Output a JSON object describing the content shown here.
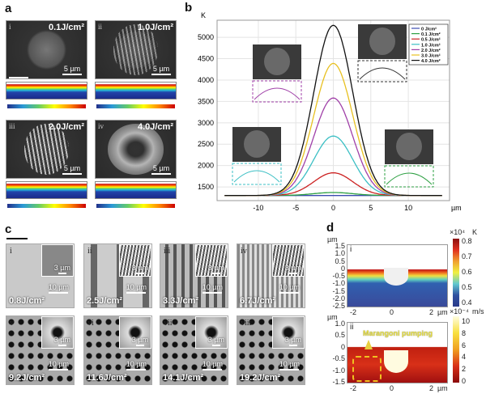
{
  "panel_a": {
    "label": "a",
    "subpanels": [
      {
        "num": "i",
        "fluence": "0.1J/cm²",
        "scale": "5 µm"
      },
      {
        "num": "ii",
        "fluence": "1.0J/cm²",
        "scale": "5 µm"
      },
      {
        "num": "iii",
        "fluence": "2.0J/cm²",
        "scale": "5 µm"
      },
      {
        "num": "iv",
        "fluence": "4.0J/cm²",
        "scale": "5 µm"
      }
    ]
  },
  "panel_b": {
    "label": "b"
  },
  "chart_data": {
    "type": "line",
    "ylabel": "K",
    "xlabel": "µm",
    "xlim": [
      -15.5,
      15.5
    ],
    "ylim": [
      1180,
      5400
    ],
    "xticks": [
      -10,
      -5,
      0,
      5,
      10
    ],
    "yticks": [
      1500,
      2000,
      2500,
      3000,
      3500,
      4000,
      4500,
      5000
    ],
    "grid": true,
    "legend_position": "top-right",
    "series": [
      {
        "name": "0 J/cm²",
        "color": "#3b4bb0",
        "peak": 1300
      },
      {
        "name": "0.1 J/cm²",
        "color": "#2ea043",
        "peak": 1370
      },
      {
        "name": "0.5 J/cm²",
        "color": "#cc2222",
        "peak": 1830
      },
      {
        "name": "1.0 J/cm²",
        "color": "#3bbfc4",
        "peak": 2690
      },
      {
        "name": "2.0 J/cm²",
        "color": "#a040a8",
        "peak": 3580
      },
      {
        "name": "3.0 J/cm²",
        "color": "#e8c020",
        "peak": 4390
      },
      {
        "name": "4.0 J/cm²",
        "color": "#111111",
        "peak": 5280
      }
    ],
    "baseline": 1300
  },
  "panel_c": {
    "label": "c",
    "subpanels": [
      {
        "num": "i",
        "fluence": "0.8J/cm²",
        "scale": "10 µm",
        "inset_scale": "3 µm"
      },
      {
        "num": "ii",
        "fluence": "2.5J/cm²",
        "scale": "10 µm",
        "inset_scale": "3 µm"
      },
      {
        "num": "iii",
        "fluence": "3.3J/cm²",
        "scale": "10 µm",
        "inset_scale": "3 µm"
      },
      {
        "num": "iv",
        "fluence": "6.7J/cm²",
        "scale": "10 µm",
        "inset_scale": "3 µm"
      },
      {
        "num": "v",
        "fluence": "9.2J/cm²",
        "scale": "10 µm",
        "inset_scale": "3 µm"
      },
      {
        "num": "vi",
        "fluence": "11.6J/cm²",
        "scale": "10 µm",
        "inset_scale": "3 µm"
      },
      {
        "num": "vii",
        "fluence": "14.1J/cm²",
        "scale": "10 µm",
        "inset_scale": "3 µm"
      },
      {
        "num": "viii",
        "fluence": "19.2J/cm²",
        "scale": "10 µm",
        "inset_scale": "3 µm"
      }
    ]
  },
  "panel_d": {
    "label": "d",
    "i": {
      "num": "i",
      "yunit": "µm",
      "yticks": [
        "1.5",
        "1.0",
        "0.5",
        "0",
        "-0.5",
        "-1.0",
        "-1.5",
        "-2.0",
        "-2.5"
      ],
      "xticks": [
        "-2",
        "0",
        "2"
      ],
      "xunit": "µm",
      "cbar_exp": "×10⁴",
      "cbar_unit": "K",
      "cbar_ticks": [
        "0.8",
        "0.7",
        "0.6",
        "0.5",
        "0.4"
      ]
    },
    "ii": {
      "num": "ii",
      "yunit": "µm",
      "yticks": [
        "1.0",
        "0.5",
        "0",
        "-0.5",
        "-1.0",
        "-1.5"
      ],
      "xticks": [
        "-2",
        "0",
        "2"
      ],
      "xunit": "µm",
      "cbar_exp": "×10⁻⁴",
      "cbar_unit": "m/s",
      "cbar_ticks": [
        "10",
        "8",
        "6",
        "4",
        "2",
        "0"
      ],
      "annotation": "Marangoni pumping"
    }
  }
}
